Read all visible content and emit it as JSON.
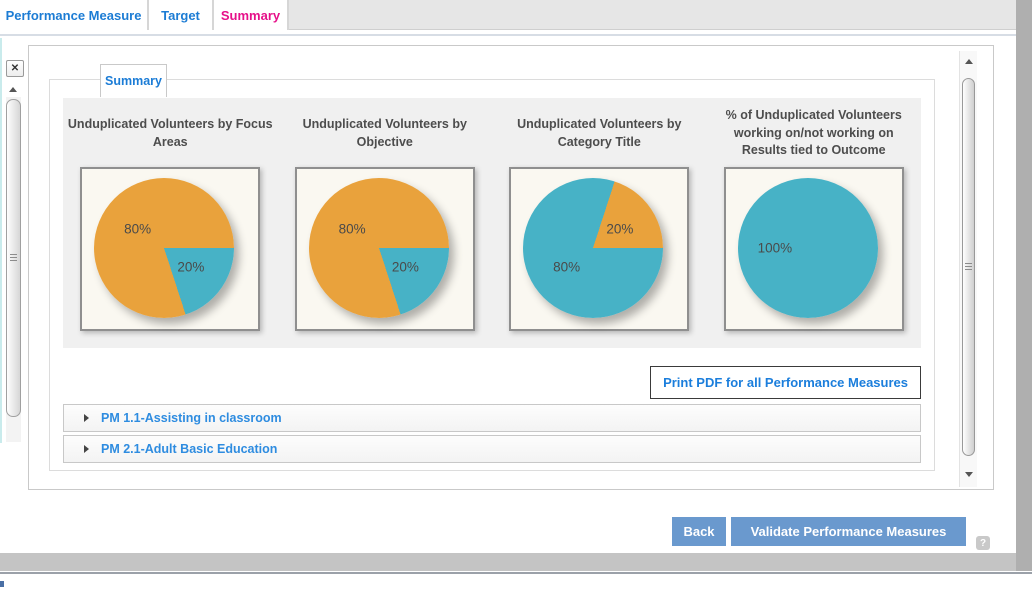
{
  "tabs": {
    "items": [
      {
        "label": "Performance Measure",
        "active": false
      },
      {
        "label": "Target",
        "active": false
      },
      {
        "label": "Summary",
        "active": true
      }
    ]
  },
  "panel": {
    "tab": "Summary"
  },
  "charts": {
    "print_button": "Print PDF for all Performance Measures"
  },
  "chart_data": [
    {
      "type": "pie",
      "title": "Unduplicated Volunteers by Focus Areas",
      "rotation_deg": 90,
      "slices": [
        {
          "label": "20%",
          "value": 20,
          "color": "#47B2C6",
          "name": "teal"
        },
        {
          "label": "80%",
          "value": 80,
          "color": "#E9A23C",
          "name": "orange"
        }
      ]
    },
    {
      "type": "pie",
      "title": "Unduplicated Volunteers by Objective",
      "rotation_deg": 90,
      "slices": [
        {
          "label": "20%",
          "value": 20,
          "color": "#47B2C6",
          "name": "teal"
        },
        {
          "label": "80%",
          "value": 80,
          "color": "#E9A23C",
          "name": "orange"
        }
      ]
    },
    {
      "type": "pie",
      "title": "Unduplicated Volunteers by Category Title",
      "rotation_deg": 18,
      "slices": [
        {
          "label": "20%",
          "value": 20,
          "color": "#E9A23C",
          "name": "orange"
        },
        {
          "label": "80%",
          "value": 80,
          "color": "#47B2C6",
          "name": "teal"
        }
      ]
    },
    {
      "type": "pie",
      "title": "% of Unduplicated Volunteers working on/not working on Results tied to Outcome",
      "rotation_deg": 0,
      "slices": [
        {
          "label": "100%",
          "value": 100,
          "color": "#47B2C6",
          "name": "teal"
        }
      ]
    }
  ],
  "accordion": {
    "items": [
      {
        "label": "PM 1.1-Assisting in classroom"
      },
      {
        "label": "PM 2.1-Adult Basic Education"
      }
    ]
  },
  "footer": {
    "back_label": "Back",
    "validate_label": "Validate Performance Measures",
    "help_label": "?"
  },
  "left_panel": {
    "close_label": "✕"
  },
  "colors": {
    "pie_orange": "#E9A23C",
    "pie_teal": "#47B2C6",
    "tab_blue": "#1C7CD4",
    "active_tab_pink": "#E6118A",
    "footer_button_blue": "#6A99CE",
    "link_blue": "#2E8CE0"
  }
}
